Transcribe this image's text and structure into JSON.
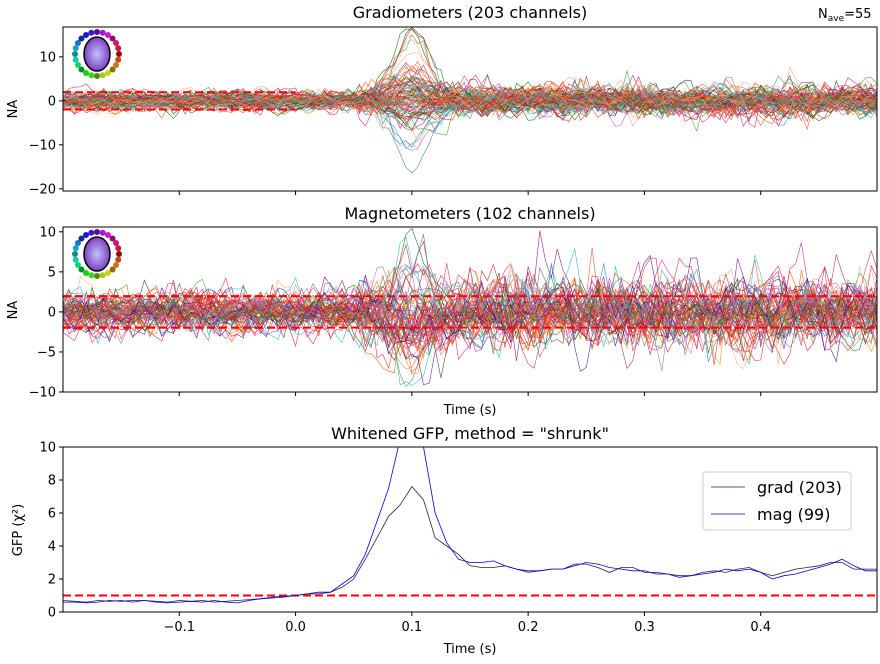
{
  "header": {
    "nave_label": "N",
    "nave_sub": "ave",
    "nave_value": "=55"
  },
  "chart_data": [
    {
      "type": "line",
      "title": "Gradiometers (203 channels)",
      "ylabel": "NA",
      "xlabel": "",
      "xlim": [
        -0.2,
        0.5
      ],
      "ylim": [
        -20.5,
        16.8
      ],
      "yticks": [
        10,
        0,
        -10,
        -20
      ],
      "xticks": [
        -0.1,
        0.0,
        0.1,
        0.2,
        0.3,
        0.4
      ],
      "n_channels": 203,
      "threshold": 1.96,
      "evoked_peak": {
        "time": 0.1,
        "min": -19,
        "max": 15
      },
      "threshold_color": "#ff0000"
    },
    {
      "type": "line",
      "title": "Magnetometers (102 channels)",
      "ylabel": "NA",
      "xlabel": "Time (s)",
      "xlim": [
        -0.2,
        0.5
      ],
      "ylim": [
        -10,
        10.6
      ],
      "yticks": [
        10,
        5,
        0,
        -5,
        -10
      ],
      "xticks": [
        -0.1,
        0.0,
        0.1,
        0.2,
        0.3,
        0.4
      ],
      "n_channels": 102,
      "threshold": 1.96,
      "evoked_peak": {
        "time": 0.1,
        "min": -9,
        "max": 9.5
      },
      "threshold_color": "#ff0000"
    },
    {
      "type": "line",
      "title": "Whitened GFP, method = \"shrunk\"",
      "ylabel": "GFP (χ²)",
      "xlabel": "Time (s)",
      "xlim": [
        -0.2,
        0.5
      ],
      "ylim": [
        0,
        10
      ],
      "yticks": [
        0,
        2,
        4,
        6,
        8,
        10
      ],
      "xticks": [
        "−0.1",
        "0.0",
        "0.1",
        "0.2",
        "0.3",
        "0.4"
      ],
      "xtick_values": [
        -0.1,
        0.0,
        0.1,
        0.2,
        0.3,
        0.4
      ],
      "legend_position": "upper-right",
      "reference_line": 1,
      "x_start": -0.2,
      "x_step": 0.01,
      "series": [
        {
          "name": "grad (203)",
          "color": "#222244",
          "values": [
            0.7,
            0.65,
            0.6,
            0.7,
            0.65,
            0.7,
            0.6,
            0.7,
            0.65,
            0.6,
            0.7,
            0.65,
            0.7,
            0.6,
            0.65,
            0.7,
            0.75,
            0.8,
            0.85,
            0.9,
            1.0,
            1.1,
            1.1,
            1.2,
            1.5,
            2.0,
            3.2,
            4.5,
            5.8,
            6.5,
            7.6,
            6.8,
            4.5,
            4.0,
            3.5,
            2.8,
            2.7,
            2.7,
            2.8,
            2.6,
            2.4,
            2.5,
            2.6,
            2.6,
            2.9,
            2.9,
            2.7,
            2.4,
            2.7,
            2.7,
            2.4,
            2.4,
            2.3,
            2.2,
            2.2,
            2.4,
            2.5,
            2.4,
            2.6,
            2.7,
            2.4,
            2.2,
            2.4,
            2.6,
            2.7,
            2.8,
            3.0,
            3.0,
            2.6,
            2.6,
            2.6
          ]
        },
        {
          "name": "mag (99)",
          "color": "#0000dd",
          "values": [
            0.6,
            0.6,
            0.55,
            0.6,
            0.7,
            0.65,
            0.7,
            0.7,
            0.6,
            0.55,
            0.6,
            0.65,
            0.6,
            0.7,
            0.6,
            0.55,
            0.7,
            0.8,
            0.9,
            0.95,
            1.0,
            1.1,
            1.2,
            1.2,
            1.7,
            2.2,
            3.5,
            5.5,
            7.5,
            10.5,
            12,
            10,
            6,
            4.2,
            3.2,
            3.0,
            3.0,
            3.1,
            2.8,
            2.6,
            2.5,
            2.5,
            2.6,
            2.6,
            2.8,
            3.0,
            2.9,
            2.7,
            2.6,
            2.5,
            2.5,
            2.3,
            2.3,
            2.1,
            2.2,
            2.3,
            2.4,
            2.6,
            2.5,
            2.6,
            2.4,
            2.0,
            2.2,
            2.3,
            2.5,
            2.7,
            2.9,
            3.2,
            2.8,
            2.5,
            2.5
          ]
        }
      ]
    }
  ]
}
